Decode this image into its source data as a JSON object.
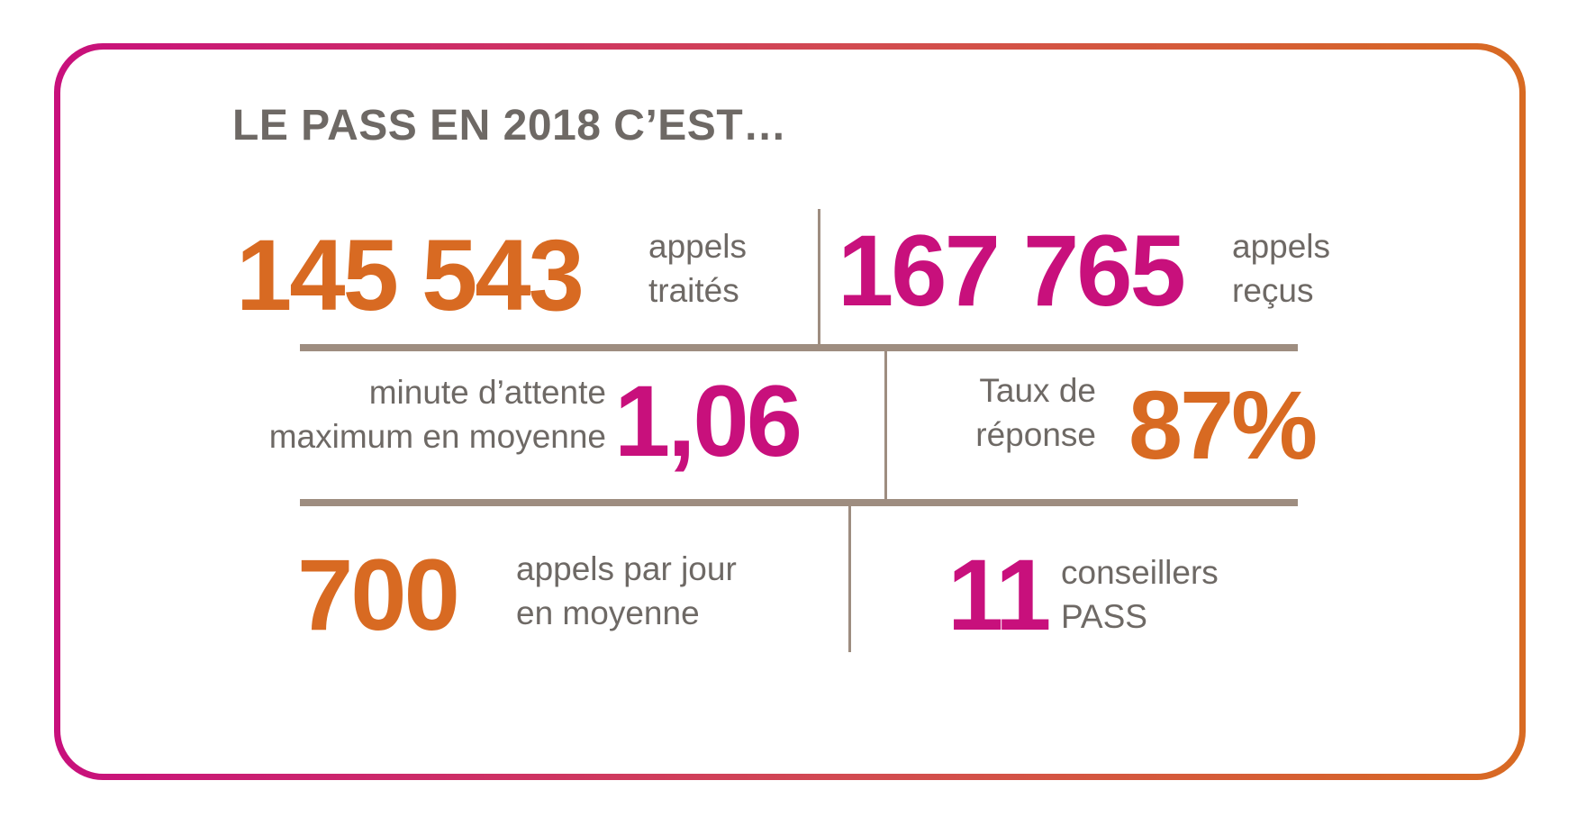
{
  "title": "LE PASS EN 2018 C’EST…",
  "colors": {
    "orange": "#d86a22",
    "magenta": "#c8107c",
    "text_grey": "#6e6965",
    "rule": "#9e8d80"
  },
  "stats": {
    "calls_handled": {
      "value": "145 543",
      "label_line1": "appels",
      "label_line2": "traités"
    },
    "calls_received": {
      "value": "167 765",
      "label_line1": "appels",
      "label_line2": "reçus"
    },
    "wait_time": {
      "value": "1,06",
      "label_line1": "minute d’attente",
      "label_line2": "maximum en moyenne"
    },
    "response_rate": {
      "value": "87%",
      "label_line1": "Taux de",
      "label_line2": "réponse"
    },
    "calls_per_day": {
      "value": "700",
      "label_line1": "appels par jour",
      "label_line2": "en moyenne"
    },
    "advisors": {
      "value": "11",
      "label_line1": "conseillers",
      "label_line2": "PASS"
    }
  }
}
